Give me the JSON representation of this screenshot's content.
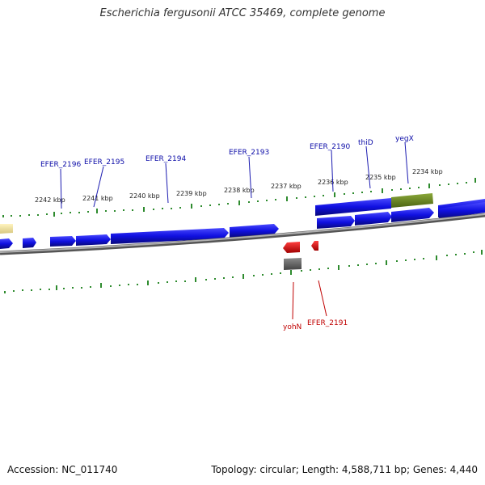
{
  "title": "Escherichia fergusonii ATCC 35469, complete genome",
  "footer": {
    "accession": "Accession: NC_011740",
    "summary": "Topology: circular; Length: 4,588,711 bp; Genes: 4,440"
  },
  "ticks": [
    "2242 kbp",
    "2241 kbp",
    "2240 kbp",
    "2239 kbp",
    "2238 kbp",
    "2237 kbp",
    "2236 kbp",
    "2235 kbp",
    "2234 kbp"
  ],
  "genes_top": [
    "EFER_2196",
    "EFER_2195",
    "EFER_2194",
    "EFER_2193",
    "EFER_2190",
    "thiD",
    "yegX"
  ],
  "genes_bottom": [
    "yohN",
    "EFER_2191"
  ],
  "colors": {
    "forward_gene": "#1010e0",
    "highlight_gene": "#6b8a20",
    "reverse_gene": "#e00000",
    "pseudo_gene": "#666666",
    "partial_gene": "#f0e2a0",
    "backbone": "#888888",
    "tick": "#2e8b2e"
  }
}
